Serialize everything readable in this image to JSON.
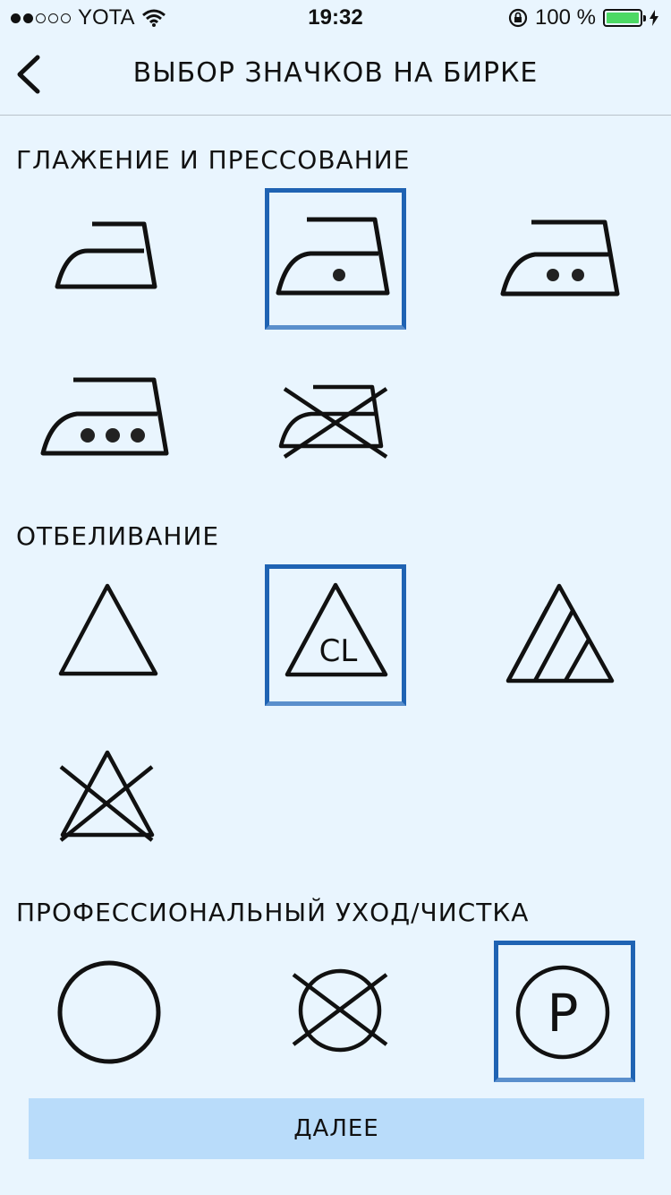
{
  "status_bar": {
    "carrier": "YOTA",
    "time": "19:32",
    "battery_percent": "100 %",
    "signal_strength": 2,
    "signal_max": 5,
    "battery_color": "#4cd964"
  },
  "header": {
    "title": "ВЫБОР ЗНАЧКОВ НА БИРКЕ"
  },
  "sections": [
    {
      "title": "ГЛАЖЕНИЕ И ПРЕССОВАНИЕ",
      "icons": [
        {
          "name": "iron-no-dots-icon",
          "selected": false
        },
        {
          "name": "iron-one-dot-icon",
          "selected": true
        },
        {
          "name": "iron-two-dots-icon",
          "selected": false
        },
        {
          "name": "iron-three-dots-icon",
          "selected": false
        },
        {
          "name": "iron-crossed-icon",
          "selected": false
        }
      ]
    },
    {
      "title": "ОТБЕЛИВАНИЕ",
      "icons": [
        {
          "name": "triangle-icon",
          "selected": false
        },
        {
          "name": "triangle-cl-icon",
          "selected": true,
          "text": "CL"
        },
        {
          "name": "triangle-striped-icon",
          "selected": false
        },
        {
          "name": "triangle-crossed-icon",
          "selected": false
        }
      ]
    },
    {
      "title": "ПРОФЕССИОНАЛЬНЫЙ УХОД/ЧИСТКА",
      "icons": [
        {
          "name": "circle-icon",
          "selected": false
        },
        {
          "name": "circle-crossed-icon",
          "selected": false
        },
        {
          "name": "circle-p-icon",
          "selected": true,
          "text": "P"
        }
      ]
    }
  ],
  "next_button": {
    "label": "ДАЛЕЕ"
  },
  "colors": {
    "background": "#e9f5fe",
    "selection_border": "#1f63b3",
    "button_bg": "#b9dcfa"
  }
}
